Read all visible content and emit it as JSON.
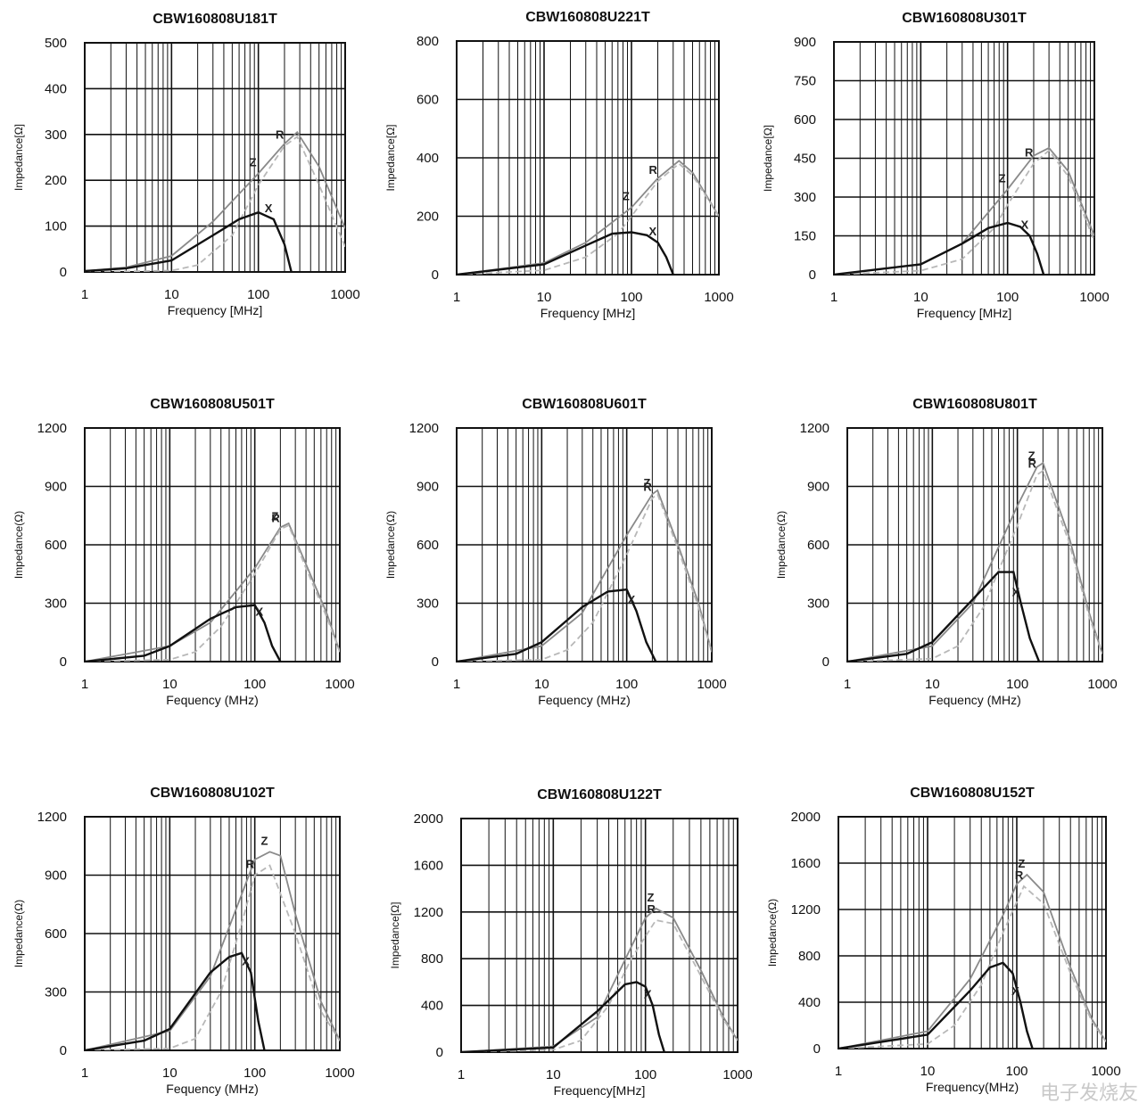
{
  "watermark_text": "电子发烧友",
  "colors": {
    "z": "#8a8a8a",
    "r": "#b8b8b8",
    "x": "#111111",
    "grid": "#111111"
  },
  "chart_data": [
    {
      "type": "line",
      "title": "CBW160808U181T",
      "xlabel": "Frequency [MHz]",
      "ylabel": "Impedance[Ω]",
      "x_scale": "log",
      "xlim": [
        1,
        1000
      ],
      "ylim": [
        0,
        500
      ],
      "x_ticks": [
        "1",
        "10",
        "100",
        "1000"
      ],
      "y_ticks": [
        "0",
        "100",
        "200",
        "300",
        "400",
        "500"
      ],
      "series": [
        {
          "name": "Z",
          "x": [
            1,
            3,
            10,
            30,
            100,
            200,
            280,
            500,
            1000
          ],
          "values": [
            2,
            10,
            35,
            110,
            215,
            280,
            305,
            230,
            95
          ]
        },
        {
          "name": "R",
          "x": [
            1,
            10,
            20,
            50,
            100,
            200,
            280,
            500,
            1000
          ],
          "values": [
            0,
            3,
            15,
            80,
            190,
            275,
            295,
            190,
            55
          ]
        },
        {
          "name": "X",
          "x": [
            1,
            3,
            10,
            30,
            60,
            100,
            150,
            200,
            240
          ],
          "values": [
            2,
            8,
            25,
            80,
            115,
            130,
            115,
            60,
            0
          ]
        }
      ],
      "annotations": [
        "Z",
        "R",
        "X"
      ]
    },
    {
      "type": "line",
      "title": "CBW160808U221T",
      "xlabel": "Frequency [MHz]",
      "ylabel": "Impedance[Ω]",
      "x_scale": "log",
      "xlim": [
        1,
        1000
      ],
      "ylim": [
        0,
        800
      ],
      "x_ticks": [
        "1",
        "10",
        "100",
        "1000"
      ],
      "y_ticks": [
        "0",
        "200",
        "400",
        "600",
        "800"
      ],
      "series": [
        {
          "name": "Z",
          "x": [
            1,
            10,
            30,
            100,
            200,
            350,
            500,
            1000
          ],
          "values": [
            0,
            40,
            110,
            230,
            330,
            390,
            350,
            200
          ]
        },
        {
          "name": "R",
          "x": [
            1,
            10,
            30,
            70,
            100,
            200,
            350,
            500,
            1000
          ],
          "values": [
            0,
            15,
            60,
            140,
            200,
            320,
            380,
            340,
            200
          ]
        },
        {
          "name": "X",
          "x": [
            1,
            10,
            30,
            60,
            100,
            150,
            200,
            250,
            300
          ],
          "values": [
            0,
            35,
            100,
            140,
            145,
            135,
            110,
            60,
            0
          ]
        }
      ],
      "annotations": [
        "Z",
        "R",
        "X"
      ]
    },
    {
      "type": "line",
      "title": "CBW160808U301T",
      "xlabel": "Frequency [MHz]",
      "ylabel": "Impedance[Ω]",
      "x_scale": "log",
      "xlim": [
        1,
        1000
      ],
      "ylim": [
        0,
        900
      ],
      "x_ticks": [
        "1",
        "10",
        "100",
        "1000"
      ],
      "y_ticks": [
        "0",
        "150",
        "300",
        "450",
        "600",
        "750",
        "900"
      ],
      "series": [
        {
          "name": "Z",
          "x": [
            1,
            10,
            30,
            100,
            200,
            300,
            500,
            1000
          ],
          "values": [
            0,
            40,
            120,
            330,
            460,
            490,
            400,
            150
          ]
        },
        {
          "name": "R",
          "x": [
            1,
            10,
            30,
            70,
            100,
            200,
            300,
            500,
            1000
          ],
          "values": [
            0,
            15,
            60,
            180,
            270,
            430,
            480,
            380,
            130
          ]
        },
        {
          "name": "X",
          "x": [
            1,
            10,
            30,
            60,
            100,
            140,
            180,
            220,
            260
          ],
          "values": [
            0,
            40,
            120,
            180,
            200,
            185,
            150,
            80,
            0
          ]
        }
      ],
      "annotations": [
        "Z",
        "R",
        "X"
      ]
    },
    {
      "type": "line",
      "title": "CBW160808U501T",
      "xlabel": "Fequency (MHz)",
      "ylabel": "Impedance(Ω)",
      "x_scale": "log",
      "xlim": [
        1,
        1000
      ],
      "ylim": [
        0,
        1200
      ],
      "x_ticks": [
        "1",
        "10",
        "100",
        "1000"
      ],
      "y_ticks": [
        "0",
        "300",
        "600",
        "900",
        "1200"
      ],
      "series": [
        {
          "name": "Z",
          "x": [
            1,
            10,
            30,
            100,
            200,
            250,
            400,
            700,
            1000
          ],
          "values": [
            0,
            80,
            200,
            480,
            690,
            710,
            500,
            250,
            50
          ]
        },
        {
          "name": "R",
          "x": [
            1,
            10,
            20,
            40,
            100,
            200,
            250,
            400,
            700,
            1000
          ],
          "values": [
            0,
            10,
            50,
            180,
            450,
            680,
            700,
            480,
            230,
            50
          ]
        },
        {
          "name": "X",
          "x": [
            1,
            5,
            10,
            30,
            60,
            100,
            130,
            160,
            200
          ],
          "values": [
            0,
            30,
            80,
            220,
            280,
            290,
            200,
            80,
            0
          ]
        }
      ],
      "annotations": [
        "Z",
        "R",
        "X"
      ]
    },
    {
      "type": "line",
      "title": "CBW160808U601T",
      "xlabel": "Fequency (MHz)",
      "ylabel": "Impedance(Ω)",
      "x_scale": "log",
      "xlim": [
        1,
        1000
      ],
      "ylim": [
        0,
        1200
      ],
      "x_ticks": [
        "1",
        "10",
        "100",
        "1000"
      ],
      "y_ticks": [
        "0",
        "300",
        "600",
        "900",
        "1200"
      ],
      "series": [
        {
          "name": "Z",
          "x": [
            1,
            10,
            30,
            100,
            200,
            230,
            400,
            700,
            1000
          ],
          "values": [
            0,
            80,
            250,
            650,
            860,
            880,
            600,
            300,
            50
          ]
        },
        {
          "name": "R",
          "x": [
            1,
            10,
            20,
            40,
            100,
            200,
            230,
            400,
            700,
            1000
          ],
          "values": [
            0,
            10,
            60,
            200,
            550,
            840,
            860,
            580,
            280,
            50
          ]
        },
        {
          "name": "X",
          "x": [
            1,
            5,
            10,
            30,
            60,
            100,
            130,
            170,
            220
          ],
          "values": [
            0,
            40,
            100,
            280,
            360,
            370,
            260,
            100,
            0
          ]
        }
      ],
      "annotations": [
        "Z",
        "R",
        "X"
      ]
    },
    {
      "type": "line",
      "title": "CBW160808U801T",
      "xlabel": "Fequency (MHz)",
      "ylabel": "Impedance(Ω)",
      "x_scale": "log",
      "xlim": [
        1,
        1000
      ],
      "ylim": [
        0,
        1200
      ],
      "x_ticks": [
        "1",
        "10",
        "100",
        "1000"
      ],
      "y_ticks": [
        "0",
        "300",
        "600",
        "900",
        "1200"
      ],
      "series": [
        {
          "name": "Z",
          "x": [
            1,
            10,
            30,
            100,
            170,
            200,
            400,
            700,
            1000
          ],
          "values": [
            0,
            80,
            300,
            800,
            1000,
            1020,
            650,
            250,
            40
          ]
        },
        {
          "name": "R",
          "x": [
            1,
            10,
            20,
            40,
            100,
            170,
            200,
            400,
            700,
            1000
          ],
          "values": [
            0,
            15,
            80,
            280,
            700,
            960,
            980,
            620,
            230,
            40
          ]
        },
        {
          "name": "X",
          "x": [
            1,
            5,
            10,
            30,
            60,
            90,
            110,
            140,
            180
          ],
          "values": [
            0,
            40,
            100,
            320,
            460,
            460,
            300,
            120,
            0
          ]
        }
      ],
      "annotations": [
        "Z",
        "R",
        "X"
      ]
    },
    {
      "type": "line",
      "title": "CBW160808U102T",
      "xlabel": "Fequency (MHz)",
      "ylabel": "Impedance(Ω)",
      "x_scale": "log",
      "xlim": [
        1,
        1000
      ],
      "ylim": [
        0,
        1200
      ],
      "x_ticks": [
        "1",
        "10",
        "100",
        "1000"
      ],
      "y_ticks": [
        "0",
        "300",
        "600",
        "900",
        "1200"
      ],
      "series": [
        {
          "name": "Z",
          "x": [
            1,
            10,
            30,
            70,
            100,
            150,
            200,
            300,
            600,
            1000
          ],
          "values": [
            0,
            100,
            380,
            800,
            980,
            1020,
            1000,
            700,
            250,
            50
          ]
        },
        {
          "name": "R",
          "x": [
            1,
            10,
            20,
            40,
            70,
            100,
            150,
            300,
            600,
            1000
          ],
          "values": [
            0,
            10,
            60,
            300,
            650,
            900,
            950,
            600,
            200,
            50
          ]
        },
        {
          "name": "X",
          "x": [
            1,
            5,
            10,
            30,
            50,
            70,
            90,
            110,
            130
          ],
          "values": [
            0,
            50,
            110,
            400,
            480,
            500,
            400,
            150,
            0
          ]
        }
      ],
      "annotations": [
        "Z",
        "R",
        "X"
      ]
    },
    {
      "type": "line",
      "title": "CBW160808U122T",
      "xlabel": "Frequency[MHz]",
      "ylabel": "Impedance[Ω]",
      "x_scale": "log",
      "xlim": [
        1,
        1000
      ],
      "ylim": [
        0,
        2000
      ],
      "x_ticks": [
        "1",
        "10",
        "100",
        "1000"
      ],
      "y_ticks": [
        "0",
        "400",
        "800",
        "1200",
        "1600",
        "2000"
      ],
      "series": [
        {
          "name": "Z",
          "x": [
            1,
            10,
            30,
            70,
            100,
            130,
            200,
            400,
            700,
            1000
          ],
          "values": [
            0,
            50,
            300,
            900,
            1150,
            1230,
            1150,
            700,
            300,
            100
          ]
        },
        {
          "name": "R",
          "x": [
            1,
            10,
            20,
            40,
            70,
            130,
            200,
            400,
            700,
            1000
          ],
          "values": [
            0,
            20,
            100,
            400,
            800,
            1130,
            1100,
            650,
            280,
            100
          ]
        },
        {
          "name": "X",
          "x": [
            1,
            10,
            30,
            60,
            80,
            100,
            120,
            140,
            160
          ],
          "values": [
            0,
            40,
            350,
            580,
            600,
            560,
            400,
            150,
            0
          ]
        }
      ],
      "annotations": [
        "Z",
        "R",
        "X"
      ]
    },
    {
      "type": "line",
      "title": "CBW160808U152T",
      "xlabel": "Frequency(MHz)",
      "ylabel": "Impedance(Ω)",
      "x_scale": "log",
      "xlim": [
        1,
        1000
      ],
      "ylim": [
        0,
        2000
      ],
      "x_ticks": [
        "1",
        "10",
        "100",
        "1000"
      ],
      "y_ticks": [
        "0",
        "400",
        "800",
        "1200",
        "1600",
        "2000"
      ],
      "series": [
        {
          "name": "Z",
          "x": [
            1,
            10,
            30,
            70,
            100,
            130,
            200,
            400,
            700,
            1000
          ],
          "values": [
            0,
            150,
            600,
            1150,
            1420,
            1500,
            1350,
            700,
            250,
            60
          ]
        },
        {
          "name": "R",
          "x": [
            1,
            10,
            20,
            40,
            70,
            120,
            200,
            400,
            700,
            1000
          ],
          "values": [
            0,
            40,
            200,
            550,
            1000,
            1400,
            1250,
            650,
            230,
            60
          ]
        },
        {
          "name": "X",
          "x": [
            1,
            10,
            30,
            50,
            70,
            90,
            110,
            130,
            150
          ],
          "values": [
            0,
            120,
            500,
            700,
            740,
            650,
            400,
            150,
            0
          ]
        }
      ],
      "annotations": [
        "Z",
        "R",
        "X"
      ]
    }
  ]
}
